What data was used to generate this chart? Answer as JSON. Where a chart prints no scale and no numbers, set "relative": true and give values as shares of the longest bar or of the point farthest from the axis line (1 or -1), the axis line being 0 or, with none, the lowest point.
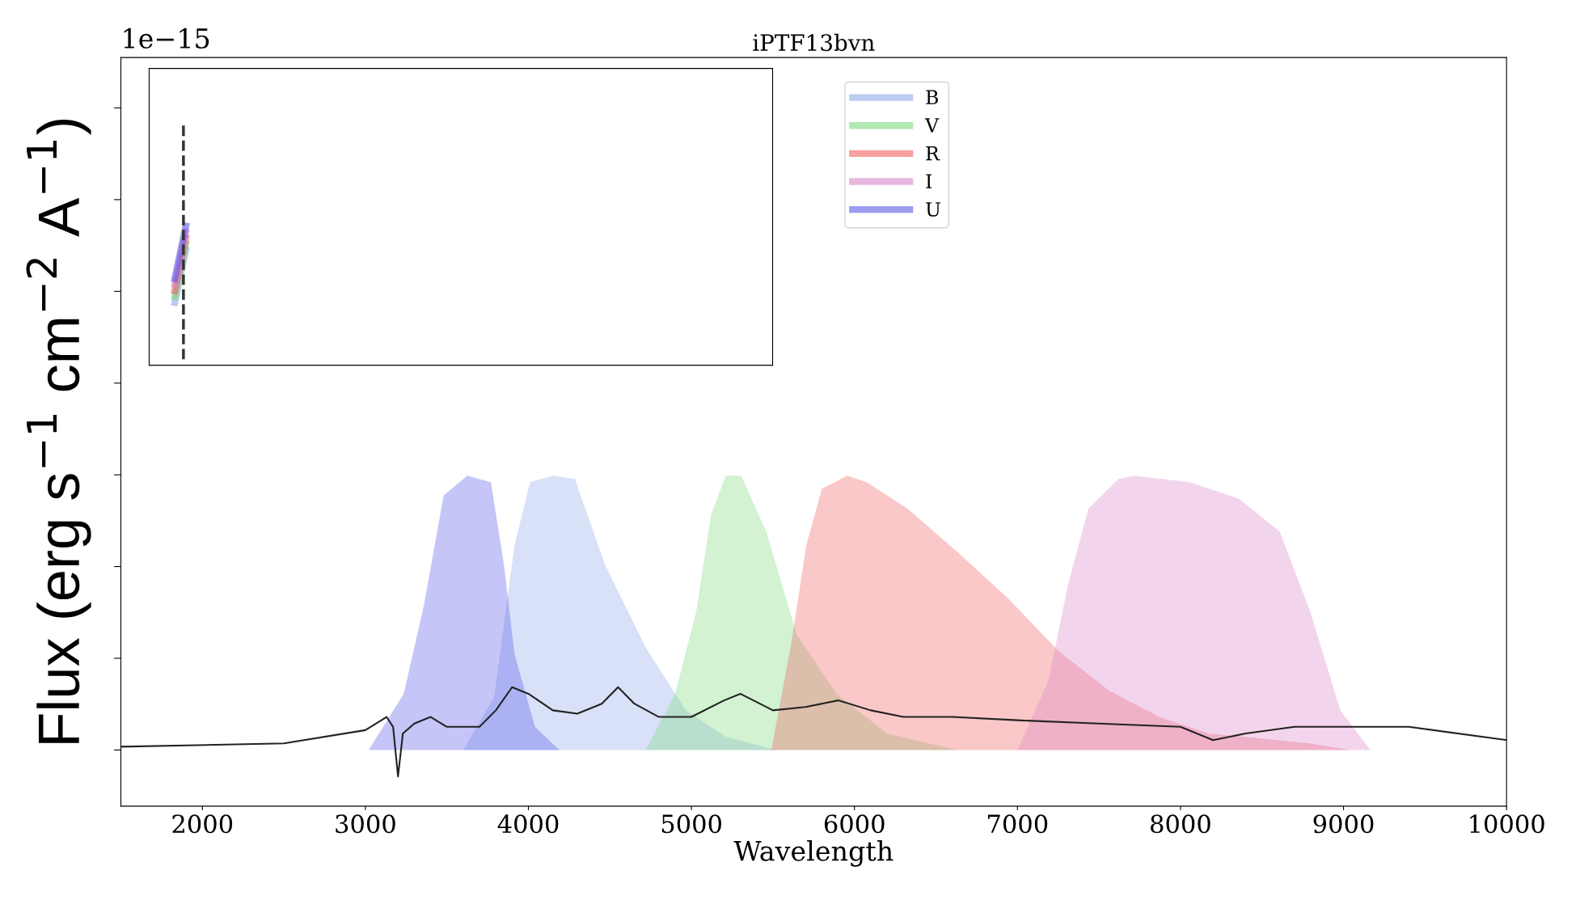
{
  "chart_data": {
    "type": "area",
    "title": "iPTF13bvn",
    "xlabel": "Wavelength",
    "ylabel": "Flux (erg s$^{−1}$ cm$^{−2}$ A$^{−1}$)",
    "relative": true,
    "xlim": [
      1500,
      10000
    ],
    "xticks": [
      2000,
      3000,
      4000,
      5000,
      6000,
      7000,
      8000,
      9000,
      10000
    ],
    "tick_labels": "x",
    "legend": "top",
    "grid": false,
    "annotations": [
      "1e−15"
    ],
    "series": [
      {
        "name": "B",
        "color": "#8fa8e8",
        "x": [
          3600,
          3790,
          3915,
          4010,
          4150,
          4285,
          4470,
          4720,
          4965,
          5210,
          5520
        ],
        "values": [
          0.17,
          0.33,
          0.79,
          0.98,
          1.0,
          0.99,
          0.73,
          0.48,
          0.29,
          0.21,
          0.17
        ]
      },
      {
        "name": "V",
        "color": "#7fd97f",
        "x": [
          4720,
          4900,
          5030,
          5120,
          5210,
          5305,
          5460,
          5645,
          5890,
          6200,
          6630
        ],
        "values": [
          0.17,
          0.34,
          0.59,
          0.88,
          1.0,
          1.0,
          0.83,
          0.52,
          0.34,
          0.22,
          0.17
        ]
      },
      {
        "name": "R",
        "color": "#f06060",
        "x": [
          5490,
          5615,
          5705,
          5800,
          5955,
          6075,
          6325,
          6630,
          6940,
          7250,
          7560,
          7870,
          8175,
          8795,
          9040
        ],
        "values": [
          0.17,
          0.5,
          0.79,
          0.96,
          1.0,
          0.98,
          0.9,
          0.77,
          0.63,
          0.47,
          0.35,
          0.27,
          0.22,
          0.19,
          0.17
        ]
      },
      {
        "name": "I",
        "color": "#d986c8",
        "x": [
          7000,
          7190,
          7310,
          7435,
          7620,
          7715,
          8055,
          8360,
          8610,
          8795,
          8980,
          9165
        ],
        "values": [
          0.17,
          0.38,
          0.67,
          0.9,
          0.99,
          1.0,
          0.98,
          0.93,
          0.83,
          0.59,
          0.29,
          0.17
        ]
      },
      {
        "name": "U",
        "color": "#5a5ae8",
        "x": [
          3020,
          3235,
          3360,
          3480,
          3625,
          3770,
          3850,
          3915,
          4040,
          4190
        ],
        "values": [
          0.17,
          0.34,
          0.61,
          0.94,
          1.0,
          0.98,
          0.73,
          0.46,
          0.24,
          0.17
        ]
      },
      {
        "type": "line",
        "color": "#222222",
        "x": [
          1500,
          2500,
          3000,
          3130,
          3170,
          3200,
          3230,
          3300,
          3400,
          3500,
          3700,
          3800,
          3900,
          4000,
          4150,
          4300,
          4450,
          4550,
          4650,
          4800,
          5000,
          5200,
          5300,
          5500,
          5700,
          5900,
          6100,
          6300,
          6600,
          7000,
          7500,
          8000,
          8200,
          8400,
          8700,
          9000,
          9400,
          10000
        ],
        "values": [
          0.18,
          0.19,
          0.23,
          0.27,
          0.24,
          0.09,
          0.22,
          0.25,
          0.27,
          0.24,
          0.24,
          0.29,
          0.36,
          0.34,
          0.29,
          0.28,
          0.31,
          0.36,
          0.31,
          0.27,
          0.27,
          0.32,
          0.34,
          0.29,
          0.3,
          0.32,
          0.29,
          0.27,
          0.27,
          0.26,
          0.25,
          0.24,
          0.2,
          0.22,
          0.24,
          0.24,
          0.24,
          0.2
        ]
      }
    ]
  }
}
